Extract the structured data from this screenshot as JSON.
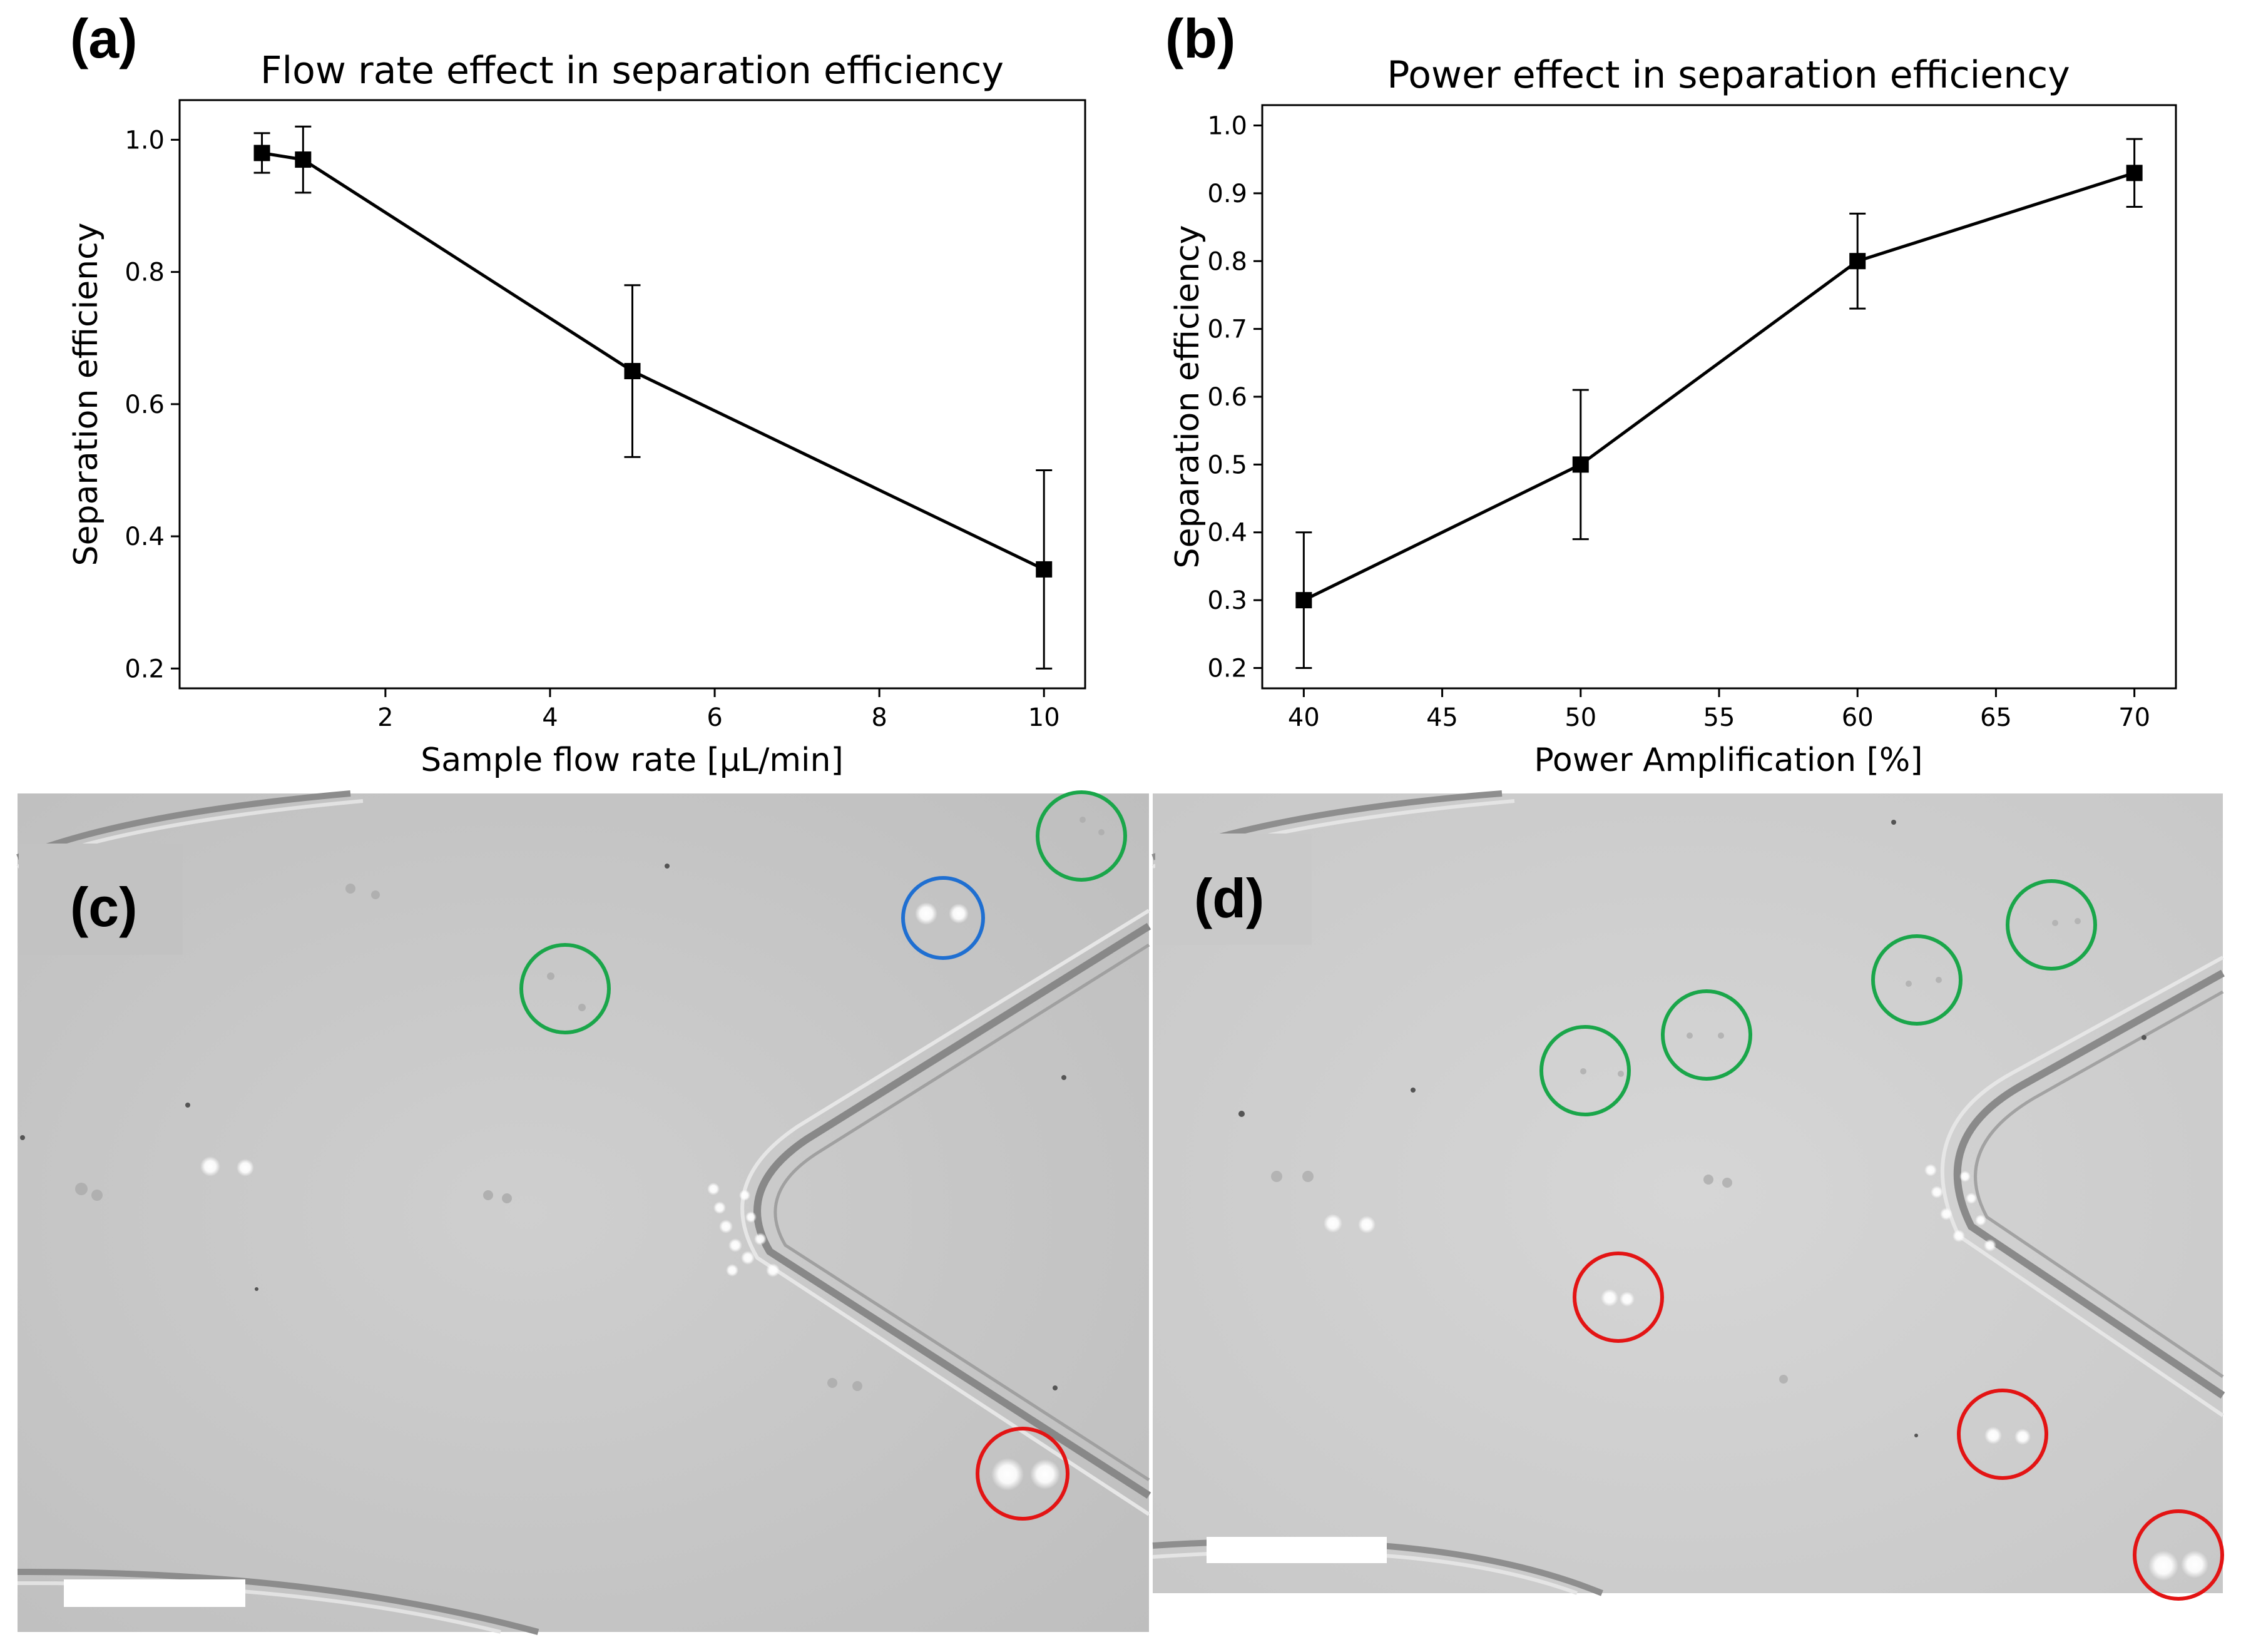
{
  "panels": {
    "a": "(a)",
    "b": "(b)",
    "c": "(c)",
    "d": "(d)"
  },
  "colors": {
    "line": "#000000",
    "green_circle": "#1aa64a",
    "blue_circle": "#1f6fd1",
    "red_circle": "#e31414",
    "micrograph_bg": "#c9c9c9",
    "scale_bar": "#ffffff"
  },
  "chart_data": [
    {
      "type": "line",
      "title": "Flow rate effect in separation efficiency",
      "xlabel": "Sample flow rate [μL/min]",
      "ylabel": "Separation efficiency",
      "xlim": [
        -0.5,
        10.5
      ],
      "ylim": [
        0.17,
        1.06
      ],
      "xticks": [
        2,
        4,
        6,
        8,
        10
      ],
      "yticks": [
        0.2,
        0.4,
        0.6,
        0.8,
        1.0
      ],
      "xtick_labels": [
        "2",
        "4",
        "6",
        "8",
        "10"
      ],
      "ytick_labels": [
        "0.2",
        "0.4",
        "0.6",
        "0.8",
        "1.0"
      ],
      "grid": false,
      "series": [
        {
          "name": "separation efficiency",
          "x": [
            0.5,
            1,
            5,
            10
          ],
          "y": [
            0.98,
            0.97,
            0.65,
            0.35
          ],
          "error": [
            0.03,
            0.05,
            0.13,
            0.15
          ]
        }
      ]
    },
    {
      "type": "line",
      "title": "Power effect in separation efficiency",
      "xlabel": "Power Amplification [%]",
      "ylabel": "Separation efficiency",
      "xlim": [
        38.5,
        71.5
      ],
      "ylim": [
        0.17,
        1.03
      ],
      "xticks": [
        40,
        45,
        50,
        55,
        60,
        65,
        70
      ],
      "yticks": [
        0.2,
        0.3,
        0.4,
        0.5,
        0.6,
        0.7,
        0.8,
        0.9,
        1.0
      ],
      "xtick_labels": [
        "40",
        "45",
        "50",
        "55",
        "60",
        "65",
        "70"
      ],
      "ytick_labels": [
        "0.2",
        "0.3",
        "0.4",
        "0.5",
        "0.6",
        "0.7",
        "0.8",
        "0.9",
        "1.0"
      ],
      "grid": false,
      "series": [
        {
          "name": "separation efficiency",
          "x": [
            40,
            50,
            60,
            70
          ],
          "y": [
            0.3,
            0.5,
            0.8,
            0.93
          ],
          "error": [
            0.1,
            0.11,
            0.07,
            0.05
          ]
        }
      ]
    }
  ]
}
